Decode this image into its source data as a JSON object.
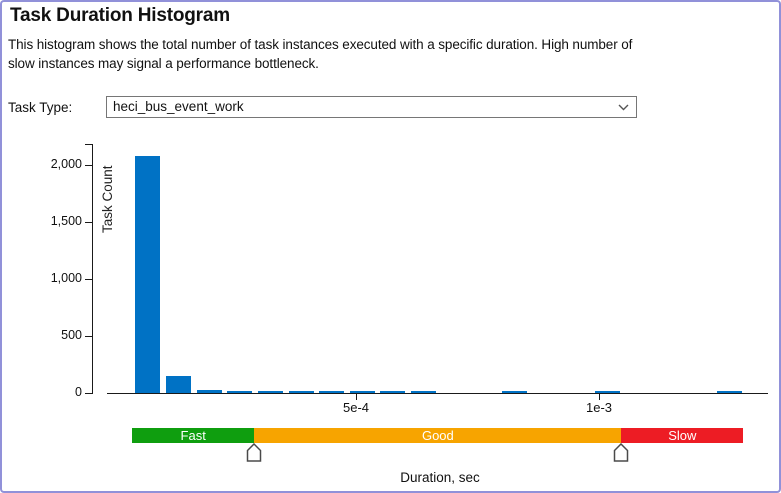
{
  "window": {
    "border_color": "#9191d9",
    "background": "#ffffff"
  },
  "header": {
    "title": "Task Duration Histogram",
    "description": "This histogram shows the total number of task instances executed with a specific duration. High number of slow instances may signal a performance bottleneck.",
    "description_line1": "This histogram shows the total number of task instances executed with a specific duration. High number of",
    "description_line2": "slow instances may signal a performance bottleneck."
  },
  "task_type": {
    "label": "Task Type:",
    "selected_option": "heci_bus_event_work",
    "chevron_icon": "chevron-down"
  },
  "chart_data": {
    "type": "bar",
    "title": "",
    "xlabel": "Duration, sec",
    "ylabel": "Task Count",
    "bar_color": "#0072c5",
    "axis_color": "#1a1a1a",
    "grid": false,
    "xlim": [
      0,
      0.00135
    ],
    "ylim": [
      0,
      2150
    ],
    "x_ticks": [
      {
        "value": 0.0005,
        "label": "5e-4"
      },
      {
        "value": 0.001,
        "label": "1e-3"
      }
    ],
    "y_ticks": [
      {
        "value": 0,
        "label": "0"
      },
      {
        "value": 500,
        "label": "500"
      },
      {
        "value": 1000,
        "label": "1,000"
      },
      {
        "value": 1500,
        "label": "1,500"
      },
      {
        "value": 2000,
        "label": "2,000"
      }
    ],
    "bars": [
      {
        "duration_sec": 7.2e-05,
        "count": 2080
      },
      {
        "duration_sec": 0.000135,
        "count": 145
      },
      {
        "duration_sec": 0.000198,
        "count": 28
      },
      {
        "duration_sec": 0.000261,
        "count": 14
      },
      {
        "duration_sec": 0.000324,
        "count": 14
      },
      {
        "duration_sec": 0.000387,
        "count": 14
      },
      {
        "duration_sec": 0.00045,
        "count": 14
      },
      {
        "duration_sec": 0.000513,
        "count": 14
      },
      {
        "duration_sec": 0.000576,
        "count": 14
      },
      {
        "duration_sec": 0.000639,
        "count": 14
      },
      {
        "duration_sec": 0.000827,
        "count": 14
      },
      {
        "duration_sec": 0.001017,
        "count": 14
      },
      {
        "duration_sec": 0.001269,
        "count": 14
      }
    ]
  },
  "threshold_band": {
    "segments": [
      {
        "label": "Fast",
        "color": "#0f9e0f",
        "from_sec": 3.9e-05,
        "to_sec": 0.000291
      },
      {
        "label": "Good",
        "color": "#f7a400",
        "from_sec": 0.000291,
        "to_sec": 0.001046
      },
      {
        "label": "Slow",
        "color": "#ed1c24",
        "from_sec": 0.001046,
        "to_sec": 0.001297
      }
    ],
    "handles": [
      {
        "name": "fast-good-threshold",
        "position_sec": 0.000291
      },
      {
        "name": "good-slow-threshold",
        "position_sec": 0.001046
      }
    ]
  }
}
